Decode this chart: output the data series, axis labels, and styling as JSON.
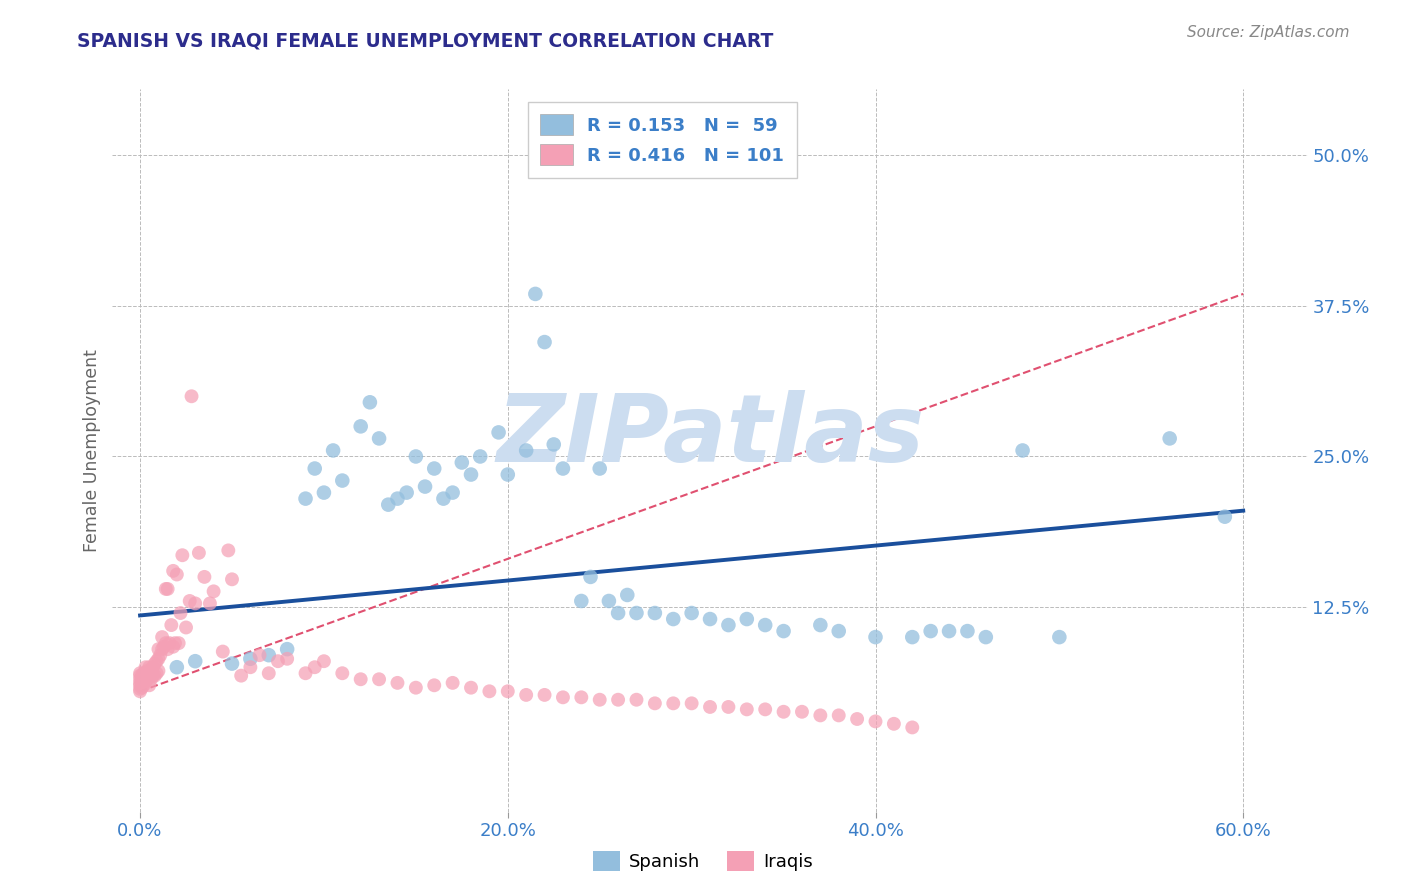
{
  "title": "SPANISH VS IRAQI FEMALE UNEMPLOYMENT CORRELATION CHART",
  "source": "Source: ZipAtlas.com",
  "ylabel": "Female Unemployment",
  "x_tick_labels": [
    "0.0%",
    "20.0%",
    "40.0%",
    "60.0%"
  ],
  "x_tick_values": [
    0.0,
    0.2,
    0.4,
    0.6
  ],
  "y_tick_labels": [
    "12.5%",
    "25.0%",
    "37.5%",
    "50.0%"
  ],
  "y_tick_values": [
    0.125,
    0.25,
    0.375,
    0.5
  ],
  "xlim": [
    -0.015,
    0.635
  ],
  "ylim": [
    -0.045,
    0.555
  ],
  "spanish_color": "#93bedd",
  "iraqi_color": "#f4a0b5",
  "spanish_trend_color": "#1a4f9c",
  "iraqi_trend_color": "#e05070",
  "background_color": "#ffffff",
  "grid_color": "#bbbbbb",
  "title_color": "#2c2c8c",
  "axis_label_color": "#666666",
  "tick_color": "#3b7ec8",
  "watermark": "ZIPatlas",
  "watermark_color": "#ccddf0",
  "spanish_x": [
    0.02,
    0.03,
    0.05,
    0.06,
    0.07,
    0.08,
    0.09,
    0.095,
    0.1,
    0.105,
    0.11,
    0.12,
    0.125,
    0.13,
    0.135,
    0.14,
    0.145,
    0.15,
    0.155,
    0.16,
    0.165,
    0.17,
    0.175,
    0.18,
    0.185,
    0.195,
    0.2,
    0.21,
    0.215,
    0.22,
    0.225,
    0.23,
    0.24,
    0.245,
    0.25,
    0.255,
    0.26,
    0.265,
    0.27,
    0.28,
    0.29,
    0.3,
    0.31,
    0.32,
    0.33,
    0.34,
    0.35,
    0.37,
    0.38,
    0.4,
    0.42,
    0.43,
    0.44,
    0.45,
    0.46,
    0.48,
    0.5,
    0.56,
    0.59
  ],
  "spanish_y": [
    0.075,
    0.08,
    0.078,
    0.082,
    0.085,
    0.09,
    0.215,
    0.24,
    0.22,
    0.255,
    0.23,
    0.275,
    0.295,
    0.265,
    0.21,
    0.215,
    0.22,
    0.25,
    0.225,
    0.24,
    0.215,
    0.22,
    0.245,
    0.235,
    0.25,
    0.27,
    0.235,
    0.255,
    0.385,
    0.345,
    0.26,
    0.24,
    0.13,
    0.15,
    0.24,
    0.13,
    0.12,
    0.135,
    0.12,
    0.12,
    0.115,
    0.12,
    0.115,
    0.11,
    0.115,
    0.11,
    0.105,
    0.11,
    0.105,
    0.1,
    0.1,
    0.105,
    0.105,
    0.105,
    0.1,
    0.255,
    0.1,
    0.265,
    0.2
  ],
  "iraqi_x": [
    0.0,
    0.0,
    0.0,
    0.0,
    0.0,
    0.0,
    0.0,
    0.001,
    0.001,
    0.001,
    0.002,
    0.002,
    0.002,
    0.003,
    0.003,
    0.003,
    0.004,
    0.004,
    0.005,
    0.005,
    0.005,
    0.006,
    0.006,
    0.007,
    0.007,
    0.008,
    0.008,
    0.009,
    0.009,
    0.01,
    0.01,
    0.01,
    0.011,
    0.012,
    0.012,
    0.013,
    0.014,
    0.014,
    0.015,
    0.015,
    0.016,
    0.017,
    0.018,
    0.018,
    0.019,
    0.02,
    0.021,
    0.022,
    0.023,
    0.025,
    0.027,
    0.028,
    0.03,
    0.032,
    0.035,
    0.038,
    0.04,
    0.045,
    0.048,
    0.05,
    0.055,
    0.06,
    0.065,
    0.07,
    0.075,
    0.08,
    0.09,
    0.095,
    0.1,
    0.11,
    0.12,
    0.13,
    0.14,
    0.15,
    0.16,
    0.17,
    0.18,
    0.19,
    0.2,
    0.21,
    0.22,
    0.23,
    0.24,
    0.25,
    0.26,
    0.27,
    0.28,
    0.29,
    0.3,
    0.31,
    0.32,
    0.33,
    0.34,
    0.35,
    0.36,
    0.37,
    0.38,
    0.39,
    0.4,
    0.41,
    0.42
  ],
  "iraqi_y": [
    0.055,
    0.057,
    0.06,
    0.062,
    0.065,
    0.068,
    0.07,
    0.058,
    0.062,
    0.068,
    0.06,
    0.065,
    0.07,
    0.063,
    0.068,
    0.075,
    0.065,
    0.072,
    0.06,
    0.068,
    0.075,
    0.065,
    0.072,
    0.068,
    0.075,
    0.068,
    0.078,
    0.07,
    0.08,
    0.072,
    0.082,
    0.09,
    0.085,
    0.09,
    0.1,
    0.092,
    0.095,
    0.14,
    0.09,
    0.14,
    0.095,
    0.11,
    0.092,
    0.155,
    0.095,
    0.152,
    0.095,
    0.12,
    0.168,
    0.108,
    0.13,
    0.3,
    0.128,
    0.17,
    0.15,
    0.128,
    0.138,
    0.088,
    0.172,
    0.148,
    0.068,
    0.075,
    0.085,
    0.07,
    0.08,
    0.082,
    0.07,
    0.075,
    0.08,
    0.07,
    0.065,
    0.065,
    0.062,
    0.058,
    0.06,
    0.062,
    0.058,
    0.055,
    0.055,
    0.052,
    0.052,
    0.05,
    0.05,
    0.048,
    0.048,
    0.048,
    0.045,
    0.045,
    0.045,
    0.042,
    0.042,
    0.04,
    0.04,
    0.038,
    0.038,
    0.035,
    0.035,
    0.032,
    0.03,
    0.028,
    0.025
  ]
}
